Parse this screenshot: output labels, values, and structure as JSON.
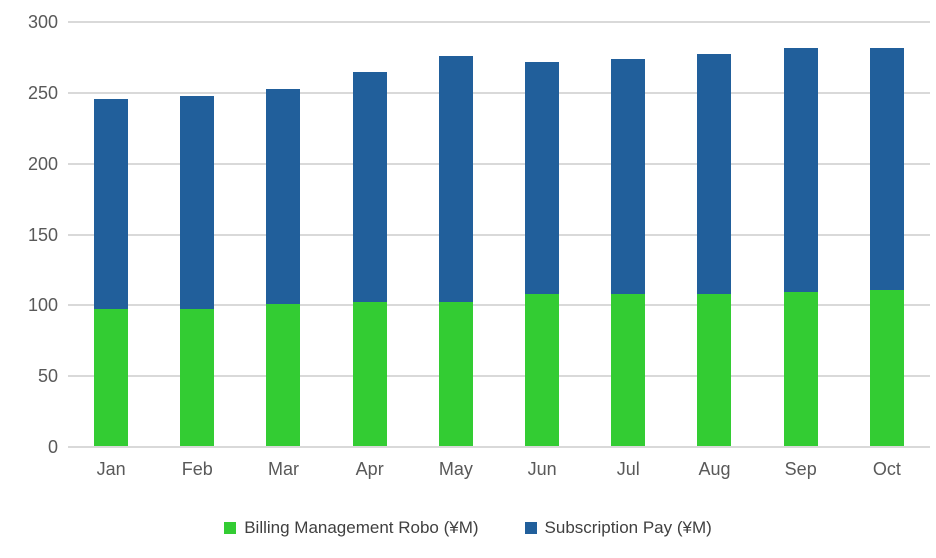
{
  "chart_data": {
    "type": "bar",
    "stacked": true,
    "orientation": "vertical",
    "categories": [
      "Jan",
      "Feb",
      "Mar",
      "Apr",
      "May",
      "Jun",
      "Jul",
      "Aug",
      "Sep",
      "Oct"
    ],
    "series": [
      {
        "name": "Billing Management Robo (¥M)",
        "color": "#33cc33",
        "values": [
          97,
          97,
          100,
          102,
          102,
          107,
          107,
          107,
          109,
          110
        ]
      },
      {
        "name": "Subscription Pay (¥M)",
        "color": "#215f9b",
        "values": [
          148,
          150,
          152,
          162,
          173,
          164,
          166,
          170,
          172,
          171
        ]
      }
    ],
    "stack_totals": [
      245,
      247,
      252,
      264,
      275,
      271,
      273,
      277,
      281,
      281
    ],
    "title": "",
    "xlabel": "",
    "ylabel": "",
    "ylim": [
      0,
      300
    ],
    "yticks": [
      0,
      50,
      100,
      150,
      200,
      250,
      300
    ],
    "grid": true,
    "gridline_color": "#d9d9d9",
    "axis_label_color": "#595959",
    "legend_position": "bottom",
    "legend_text_color": "#404040",
    "background_color": "#ffffff"
  }
}
